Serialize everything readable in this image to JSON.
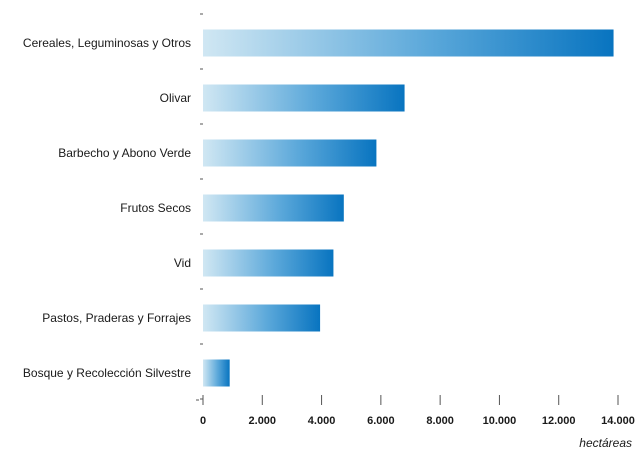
{
  "chart_data": {
    "type": "bar",
    "orientation": "horizontal",
    "categories": [
      "Cereales, Leguminosas y Otros",
      "Olivar",
      "Barbecho y Abono Verde",
      "Frutos Secos",
      "Vid",
      "Pastos, Praderas y Forrajes",
      "Bosque y Recolección Silvestre"
    ],
    "values": [
      13850,
      6800,
      5850,
      4750,
      4400,
      3950,
      900
    ],
    "xlim": [
      0,
      14000
    ],
    "xticks": [
      0,
      2000,
      4000,
      6000,
      8000,
      10000,
      12000,
      14000
    ],
    "xtick_labels": [
      "0",
      "2.000",
      "4.000",
      "6.000",
      "8.000",
      "10.000",
      "12.000",
      "14.000"
    ],
    "xlabel": "hectáreas",
    "grid": false,
    "bar_gradient": [
      "#cfe6f2",
      "#0a78c2"
    ]
  }
}
